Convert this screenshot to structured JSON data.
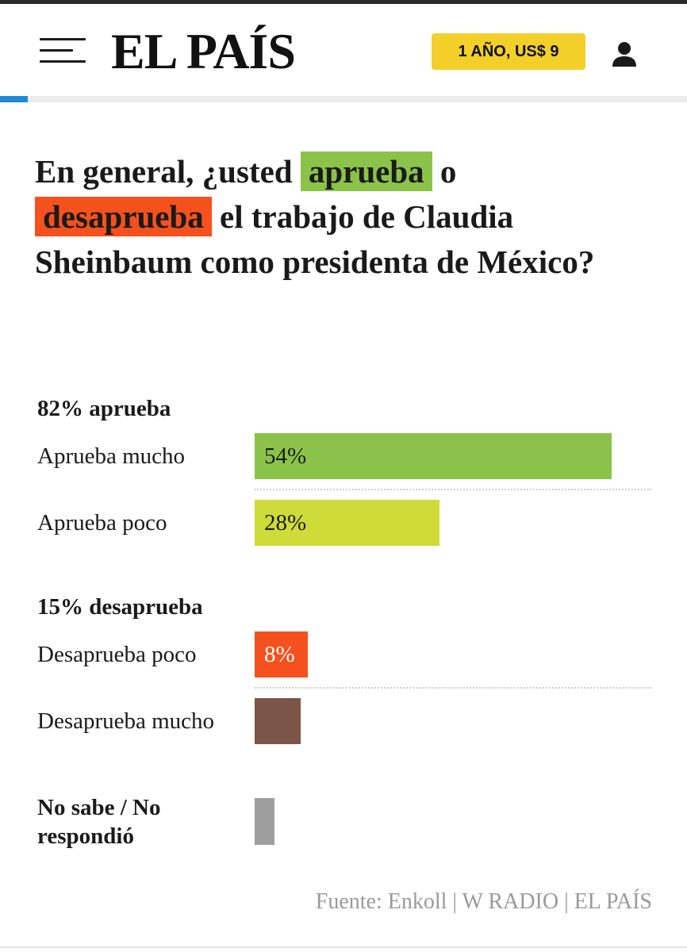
{
  "header": {
    "logo": "EL PAÍS",
    "promo_label": "1 AÑO, US$ 9",
    "icons": {
      "menu": "hamburger-menu-icon",
      "user": "user-account-icon"
    },
    "colors": {
      "promo": "#f3cf2a",
      "progress": "#1e8ad6"
    },
    "reading_progress": 0.04
  },
  "question": {
    "before": "En general, ¿usted",
    "approve_word": "aprueba",
    "middle1": "o",
    "disapprove_word": "desaprueba",
    "after": "el trabajo de Claudia Sheinbaum como presidenta de México?"
  },
  "chart_data": {
    "type": "bar",
    "orientation": "horizontal",
    "groups": [
      {
        "title": "82% aprueba",
        "items": [
          {
            "label": "Aprueba mucho",
            "value": 54,
            "value_label": "54%",
            "color": "#8bc34a"
          },
          {
            "label": "Aprueba poco",
            "value": 28,
            "value_label": "28%",
            "color": "#cddc39"
          }
        ]
      },
      {
        "title": "15% desaprueba",
        "items": [
          {
            "label": "Desaprueba poco",
            "value": 8,
            "value_label": "8%",
            "color": "#f4511e"
          },
          {
            "label": "Desaprueba mucho",
            "value": 7,
            "value_label": "",
            "color": "#7b5548"
          }
        ]
      }
    ],
    "no_answer": {
      "label": "No sabe / No respondió",
      "value": 3,
      "color": "#9e9e9e"
    },
    "source": "Fuente: Enkoll | W RADIO | EL PAÍS"
  }
}
